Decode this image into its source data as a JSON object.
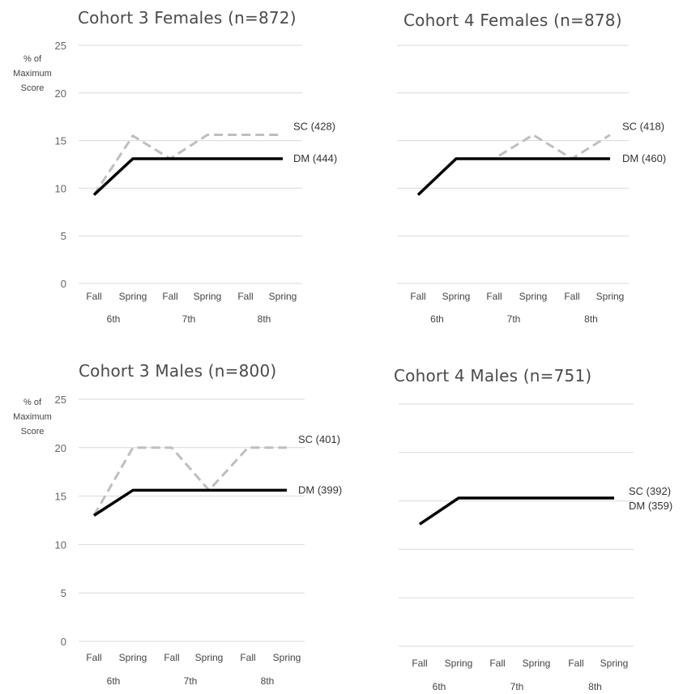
{
  "chart_data": [
    {
      "type": "line",
      "title": "Cohort 3 Females (n=872)",
      "ylabel": "% of Maximum Score",
      "ylim": [
        0,
        25
      ],
      "yticks": [
        0,
        5,
        10,
        15,
        20,
        25
      ],
      "categories": [
        "Fall",
        "Spring",
        "Fall",
        "Spring",
        "Fall",
        "Spring"
      ],
      "groups": [
        "6th",
        "7th",
        "8th"
      ],
      "grid": true,
      "series": [
        {
          "name": "SC (428)",
          "style": "dashed",
          "color": "#bfbfbf",
          "values": [
            9.3,
            15.5,
            13.1,
            15.6,
            15.6,
            15.6
          ]
        },
        {
          "name": "DM (444)",
          "style": "solid",
          "color": "#000000",
          "values": [
            9.3,
            13.1,
            13.1,
            13.1,
            13.1,
            13.1
          ]
        }
      ]
    },
    {
      "type": "line",
      "title": "Cohort 4 Females (n=878)",
      "ylabel": "",
      "ylim": [
        0,
        25
      ],
      "yticks": [],
      "categories": [
        "Fall",
        "Spring",
        "Fall",
        "Spring",
        "Fall",
        "Spring"
      ],
      "groups": [
        "6th",
        "7th",
        "8th"
      ],
      "grid": true,
      "series": [
        {
          "name": "SC (418)",
          "style": "dashed",
          "color": "#bfbfbf",
          "values": [
            9.3,
            13.1,
            13.1,
            15.6,
            13.1,
            15.6
          ]
        },
        {
          "name": "DM (460)",
          "style": "solid",
          "color": "#000000",
          "values": [
            9.3,
            13.1,
            13.1,
            13.1,
            13.1,
            13.1
          ]
        }
      ]
    },
    {
      "type": "line",
      "title": "Cohort 3 Males (n=800)",
      "ylabel": "% of Maximum Score",
      "ylim": [
        0,
        25
      ],
      "yticks": [
        0,
        5,
        10,
        15,
        20,
        25
      ],
      "categories": [
        "Fall",
        "Spring",
        "Fall",
        "Spring",
        "Fall",
        "Spring"
      ],
      "groups": [
        "6th",
        "7th",
        "8th"
      ],
      "grid": true,
      "series": [
        {
          "name": "SC (401)",
          "style": "dashed",
          "color": "#bfbfbf",
          "values": [
            13.0,
            20.0,
            20.0,
            15.6,
            20.0,
            20.0
          ]
        },
        {
          "name": "DM (399)",
          "style": "solid",
          "color": "#000000",
          "values": [
            13.0,
            15.6,
            15.6,
            15.6,
            15.6,
            15.6
          ]
        }
      ]
    },
    {
      "type": "line",
      "title": "Cohort 4 Males (n=751)",
      "ylabel": "",
      "ylim": [
        0,
        25
      ],
      "yticks": [],
      "categories": [
        "Fall",
        "Spring",
        "Fall",
        "Spring",
        "Fall",
        "Spring"
      ],
      "groups": [
        "6th",
        "7th",
        "8th"
      ],
      "grid": true,
      "series": [
        {
          "name": "SC (392)",
          "style": "dashed",
          "color": "#bfbfbf",
          "values": [
            12.6,
            15.3,
            15.3,
            15.3,
            15.3,
            15.3
          ]
        },
        {
          "name": "DM (359)",
          "style": "solid",
          "color": "#000000",
          "values": [
            12.6,
            15.3,
            15.3,
            15.3,
            15.3,
            15.3
          ]
        }
      ]
    }
  ]
}
